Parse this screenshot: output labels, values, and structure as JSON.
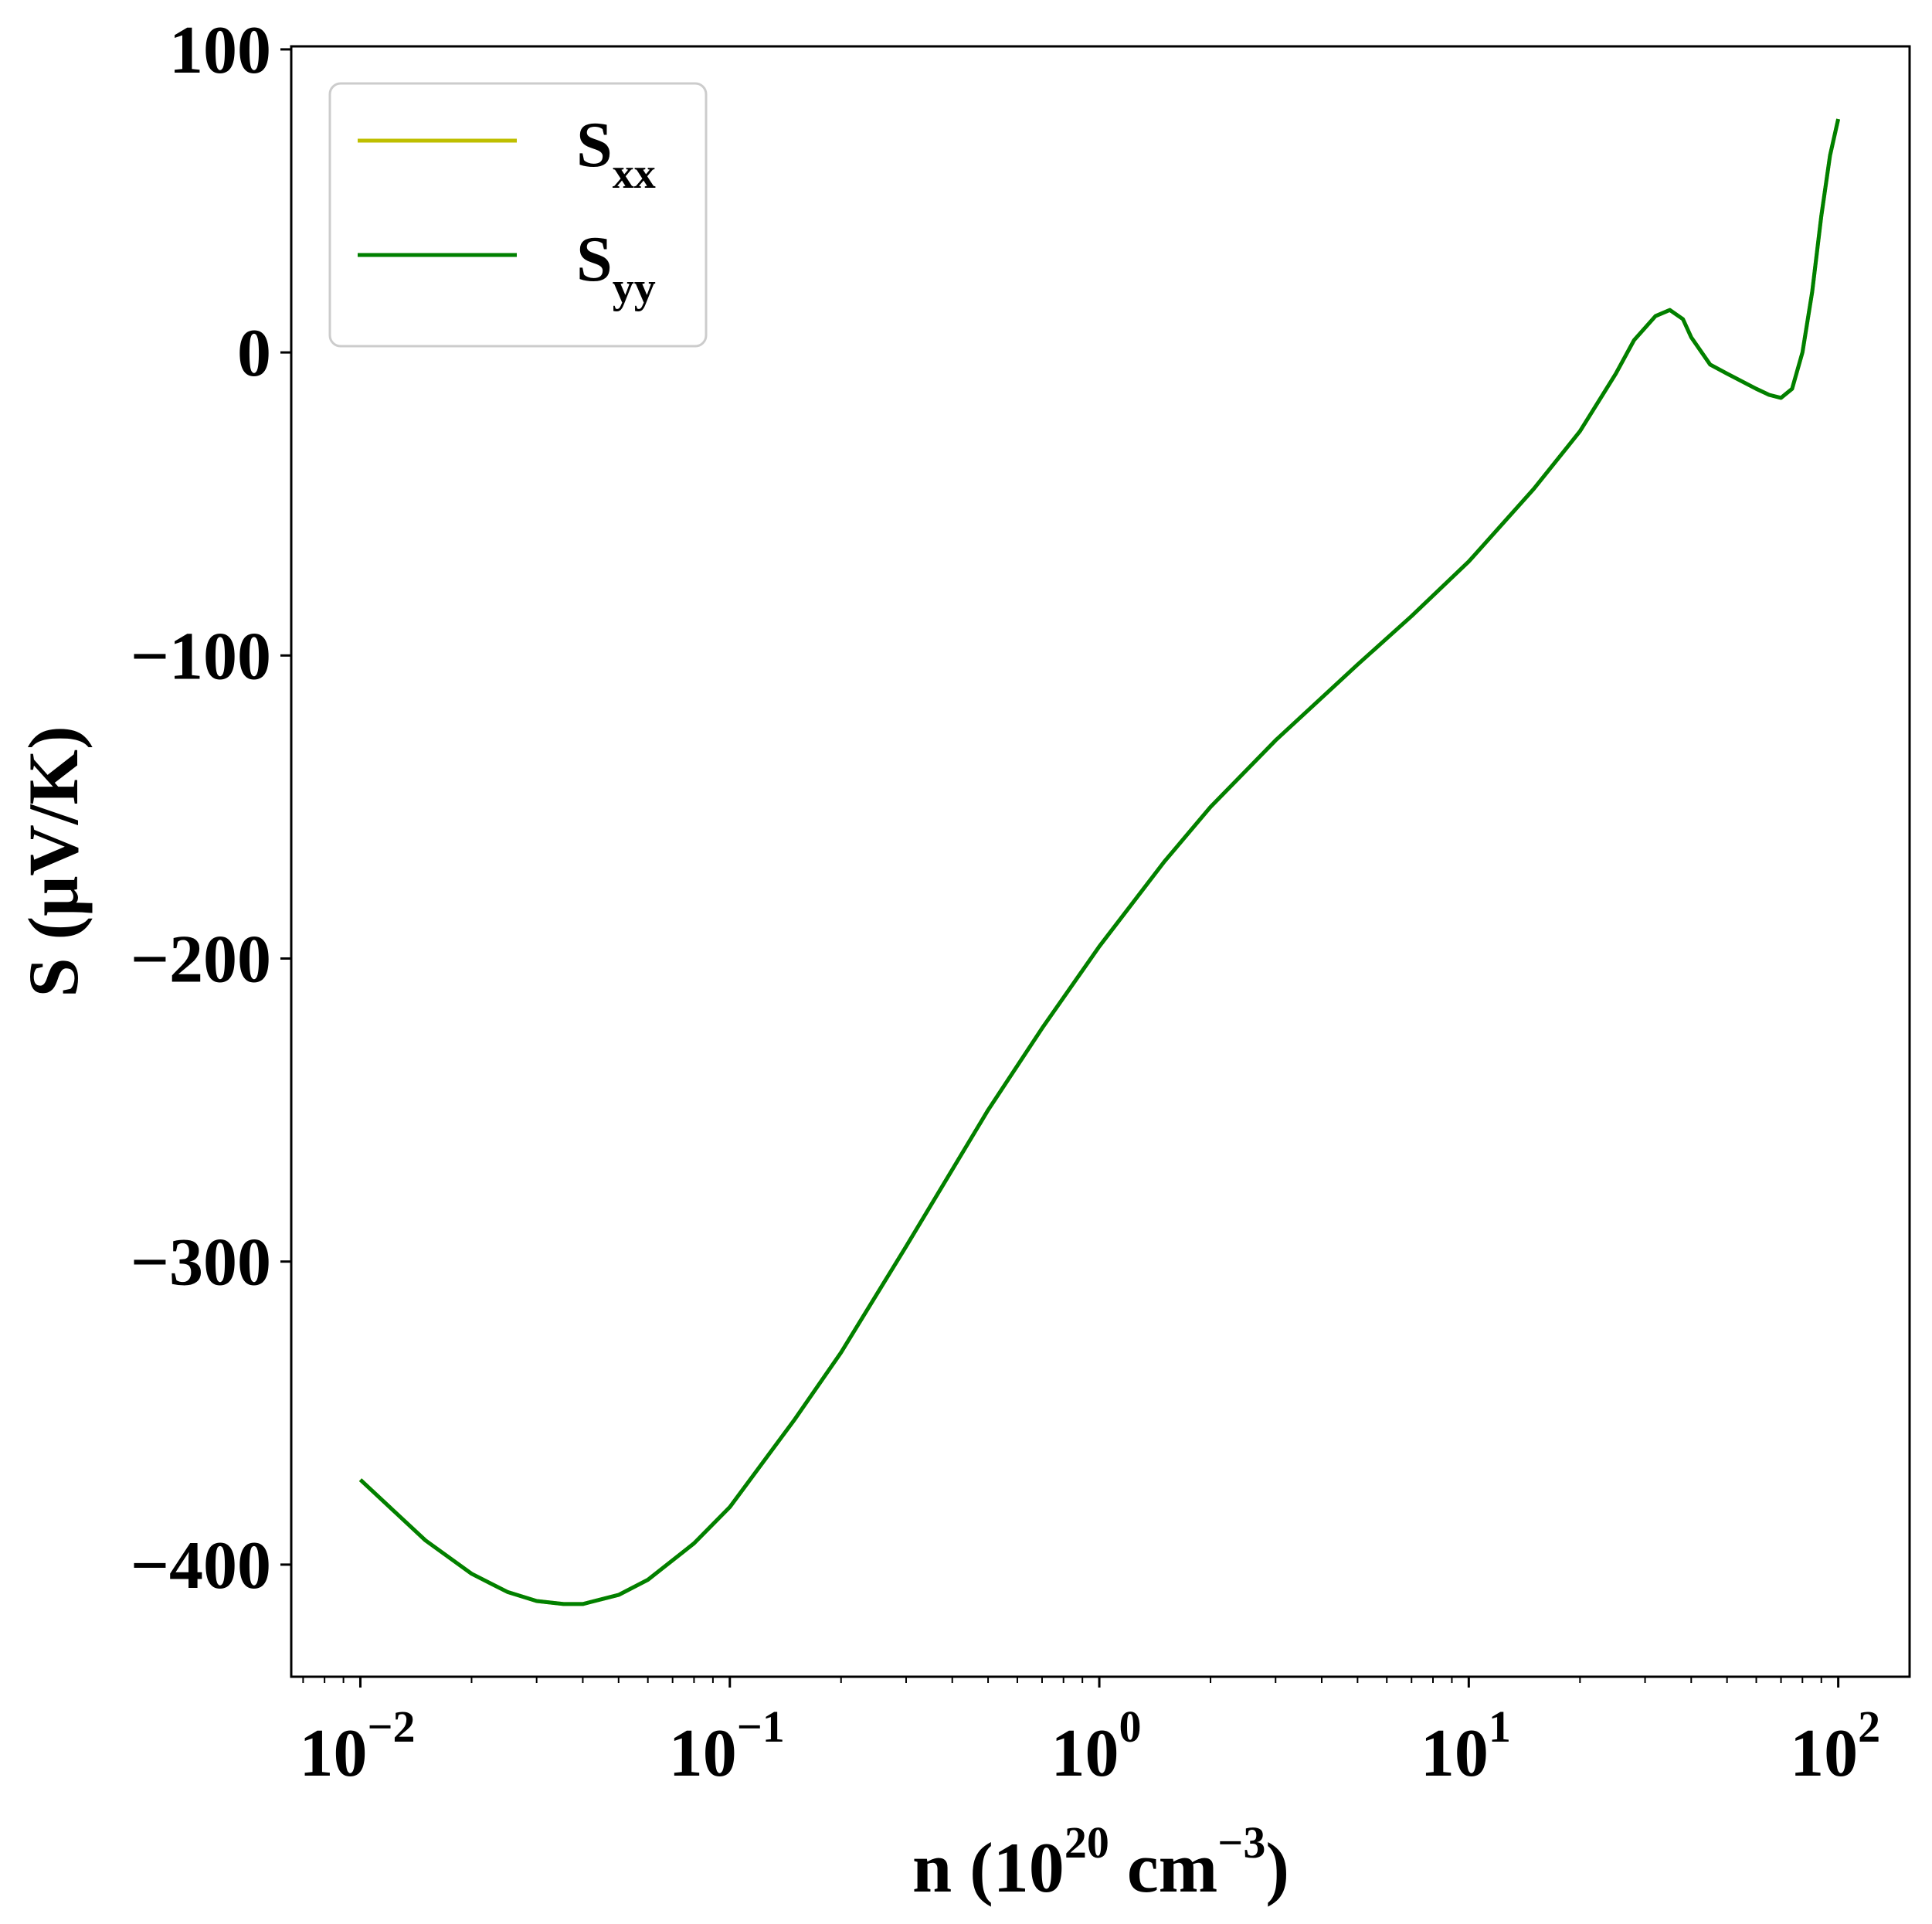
{
  "chart_data": {
    "type": "line",
    "xscale": "log",
    "xlim": [
      0.0065,
      156
    ],
    "ylim": [
      -437,
      101
    ],
    "x_ticks": [
      {
        "value": 0.01,
        "base": "10",
        "exponent": "−2"
      },
      {
        "value": 0.1,
        "base": "10",
        "exponent": "−1"
      },
      {
        "value": 1,
        "base": "10",
        "exponent": "0"
      },
      {
        "value": 10,
        "base": "10",
        "exponent": "1"
      },
      {
        "value": 100,
        "base": "10",
        "exponent": "2"
      }
    ],
    "y_ticks": [
      {
        "value": 100,
        "label": "100"
      },
      {
        "value": 0,
        "label": "0"
      },
      {
        "value": -100,
        "label": "−100"
      },
      {
        "value": -200,
        "label": "−200"
      },
      {
        "value": -300,
        "label": "−300"
      },
      {
        "value": -400,
        "label": "−400"
      }
    ],
    "xlabel": {
      "prefix": "n (10",
      "exp1": "20",
      "middle": " cm",
      "exp2": "−3",
      "suffix": ")"
    },
    "ylabel": "S (μV/K)",
    "grid": false,
    "legend_position": "top-left",
    "series": [
      {
        "name": "S",
        "subscript": "xx",
        "color": "#bfbf00",
        "x": [
          0.01,
          0.015,
          0.02,
          0.025,
          0.03,
          0.0355,
          0.04,
          0.05,
          0.06,
          0.08,
          0.1,
          0.15,
          0.2,
          0.3,
          0.5,
          0.7,
          1,
          1.5,
          2,
          3,
          5,
          7,
          10,
          15,
          20,
          25,
          28,
          32,
          35,
          38,
          40,
          45,
          50,
          60,
          65,
          70,
          75,
          80,
          85,
          90,
          95,
          100
        ],
        "y": [
          -372,
          -392,
          -403,
          -409,
          -412,
          -413,
          -413,
          -410,
          -405,
          -393,
          -381,
          -352,
          -330,
          -295,
          -250,
          -223,
          -196,
          -168,
          -150,
          -128,
          -103,
          -87,
          -69,
          -45,
          -26,
          -7,
          4,
          12,
          14,
          11,
          5,
          -4,
          -7,
          -12,
          -14,
          -15,
          -12,
          0,
          20,
          45,
          65,
          77
        ]
      },
      {
        "name": "S",
        "subscript": "yy",
        "color": "#008000",
        "x": [
          0.01,
          0.015,
          0.02,
          0.025,
          0.03,
          0.0355,
          0.04,
          0.05,
          0.06,
          0.08,
          0.1,
          0.15,
          0.2,
          0.3,
          0.5,
          0.7,
          1,
          1.5,
          2,
          3,
          5,
          7,
          10,
          15,
          20,
          25,
          28,
          32,
          35,
          38,
          40,
          45,
          50,
          60,
          65,
          70,
          75,
          80,
          85,
          90,
          95,
          100
        ],
        "y": [
          -372,
          -392,
          -403,
          -409,
          -412,
          -413,
          -413,
          -410,
          -405,
          -393,
          -381,
          -352,
          -330,
          -295,
          -250,
          -223,
          -196,
          -168,
          -150,
          -128,
          -103,
          -87,
          -69,
          -45,
          -26,
          -7,
          4,
          12,
          14,
          11,
          5,
          -4,
          -7,
          -12,
          -14,
          -15,
          -12,
          0,
          20,
          45,
          65,
          77
        ]
      }
    ]
  }
}
